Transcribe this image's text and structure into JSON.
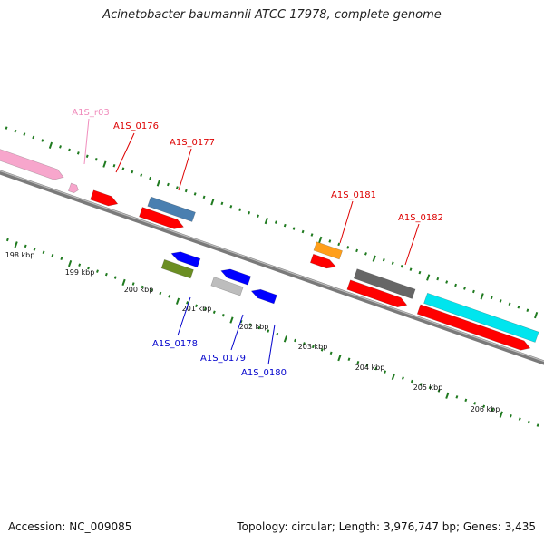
{
  "title": "Acinetobacter baumannii ATCC 17978, complete genome",
  "footer": {
    "accession": "Accession: NC_009085",
    "summary": "Topology: circular; Length: 3,976,747 bp; Genes: 3,435"
  },
  "colors": {
    "backbone": "#7a7a7a",
    "tick": "#1f7a1f",
    "label_forward": "#dd0000",
    "label_reverse": "#0000cc",
    "label_rna": "#f08cbc"
  },
  "kbp_labels": [
    "198 kbp",
    "199 kbp",
    "200 kbp",
    "201 kbp",
    "202 kbp",
    "203 kbp",
    "204 kbp",
    "205 kbp",
    "206 kbp"
  ],
  "genes": [
    {
      "name": "rna-feature",
      "color": "#f7a6cc"
    },
    {
      "name": "rna-feature-small",
      "color": "#f7a6cc"
    },
    {
      "name": "cds-forward",
      "color": "#ff0000"
    },
    {
      "name": "cds-forward",
      "color": "#ff0000"
    },
    {
      "name": "cog-steelblue",
      "color": "#4a7fb0"
    },
    {
      "name": "cds-forward",
      "color": "#ff0000"
    },
    {
      "name": "cog-orange",
      "color": "#ff9f1a"
    },
    {
      "name": "cds-forward",
      "color": "#ff0000"
    },
    {
      "name": "cog-gray",
      "color": "#666666"
    },
    {
      "name": "cds-forward",
      "color": "#ff0000"
    },
    {
      "name": "cog-cyan",
      "color": "#00e5ee"
    },
    {
      "name": "cds-reverse",
      "color": "#0000ff"
    },
    {
      "name": "cog-olive",
      "color": "#6b8e23"
    },
    {
      "name": "cds-reverse",
      "color": "#0000ff"
    },
    {
      "name": "cog-lightgray",
      "color": "#bdbdbd"
    },
    {
      "name": "cds-reverse",
      "color": "#0000ff"
    }
  ],
  "labels": [
    {
      "text": "A1S_r03",
      "color": "#f08cbc"
    },
    {
      "text": "A1S_0176",
      "color": "#dd0000"
    },
    {
      "text": "A1S_0177",
      "color": "#dd0000"
    },
    {
      "text": "A1S_0181",
      "color": "#dd0000"
    },
    {
      "text": "A1S_0182",
      "color": "#dd0000"
    },
    {
      "text": "A1S_0178",
      "color": "#0000cc"
    },
    {
      "text": "A1S_0179",
      "color": "#0000cc"
    },
    {
      "text": "A1S_0180",
      "color": "#0000cc"
    }
  ]
}
